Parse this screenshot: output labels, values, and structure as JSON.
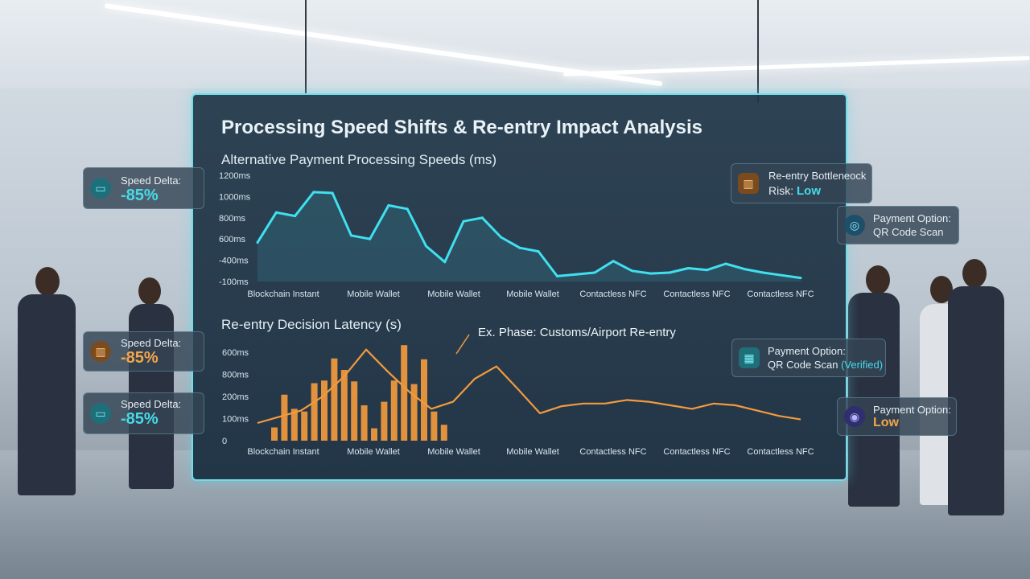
{
  "panel": {
    "title": "Processing Speed Shifts & Re-entry Impact Analysis"
  },
  "chart_data": [
    {
      "type": "line",
      "title": "Alternative Payment Processing Speeds (ms)",
      "y_ticks": [
        "1200ms",
        "1000ms",
        "800ms",
        "600ms",
        "-400ms",
        "-100ms"
      ],
      "x_labels": [
        "Blockchain Instant",
        "Mobile Wallet",
        "Mobile Wallet",
        "Mobile Wallet",
        "Contactless NFC",
        "Contactless NFC",
        "Contactless NFC"
      ],
      "series": [
        {
          "color": "#3fe0ef",
          "values": [
            440,
            780,
            740,
            1010,
            1000,
            520,
            480,
            860,
            820,
            400,
            220,
            680,
            720,
            500,
            380,
            340,
            60,
            80,
            100,
            230,
            120,
            90,
            100,
            150,
            130,
            200,
            140,
            100,
            70,
            40
          ]
        }
      ]
    },
    {
      "type": "bar",
      "title": "Re-entry Decision Latency (s)",
      "y_ticks": [
        "600ms",
        "800ms",
        "200ms",
        "100ms",
        "0"
      ],
      "x_labels": [
        "Blockchain Instant",
        "Mobile Wallet",
        "Mobile Wallet",
        "Mobile Wallet",
        "Contactless NFC",
        "Contactless NFC",
        "Contactless NFC"
      ],
      "bars": [
        0.15,
        0.52,
        0.36,
        0.33,
        0.65,
        0.68,
        0.93,
        0.8,
        0.67,
        0.4,
        0.14,
        0.44,
        0.68,
        1.08,
        0.64,
        0.92,
        0.33,
        0.18
      ],
      "line": [
        0.2,
        0.27,
        0.34,
        0.5,
        0.73,
        1.03,
        0.78,
        0.55,
        0.36,
        0.44,
        0.7,
        0.84,
        0.58,
        0.31,
        0.39,
        0.42,
        0.42,
        0.46,
        0.44,
        0.4,
        0.36,
        0.42,
        0.4,
        0.34,
        0.28,
        0.24
      ],
      "annotation": "Ex. Phase: Customs/Airport Re-entry",
      "color": "#f39a3c"
    }
  ],
  "badges": {
    "b1": {
      "label": "Speed Delta:",
      "value": "-85%",
      "icon": "card-icon",
      "color": "#46dbe8"
    },
    "b2": {
      "label": "Speed Delta:",
      "value": "-85%",
      "icon": "terminal-icon",
      "color": "#f4a64a"
    },
    "b3": {
      "label": "Speed Delta:",
      "value": "-85%",
      "icon": "card-icon",
      "color": "#46dbe8"
    },
    "b4": {
      "label1": "Re-entry Bottleneock",
      "label2": "Risk:",
      "value": "Low",
      "icon": "terminal-icon",
      "color": "#46dbe8"
    },
    "b5": {
      "label1": "Payment Option:",
      "label2": "QR Code Scan",
      "icon": "nfc-icon"
    },
    "b6": {
      "label1": "Payment Option:",
      "label2": "QR Code Scan",
      "value": "(Verified)",
      "icon": "qr-icon",
      "color": "#46dbe8"
    },
    "b7": {
      "label1": "Payment Option:",
      "value": "Low",
      "icon": "scan-icon",
      "color": "#f4a64a"
    }
  }
}
